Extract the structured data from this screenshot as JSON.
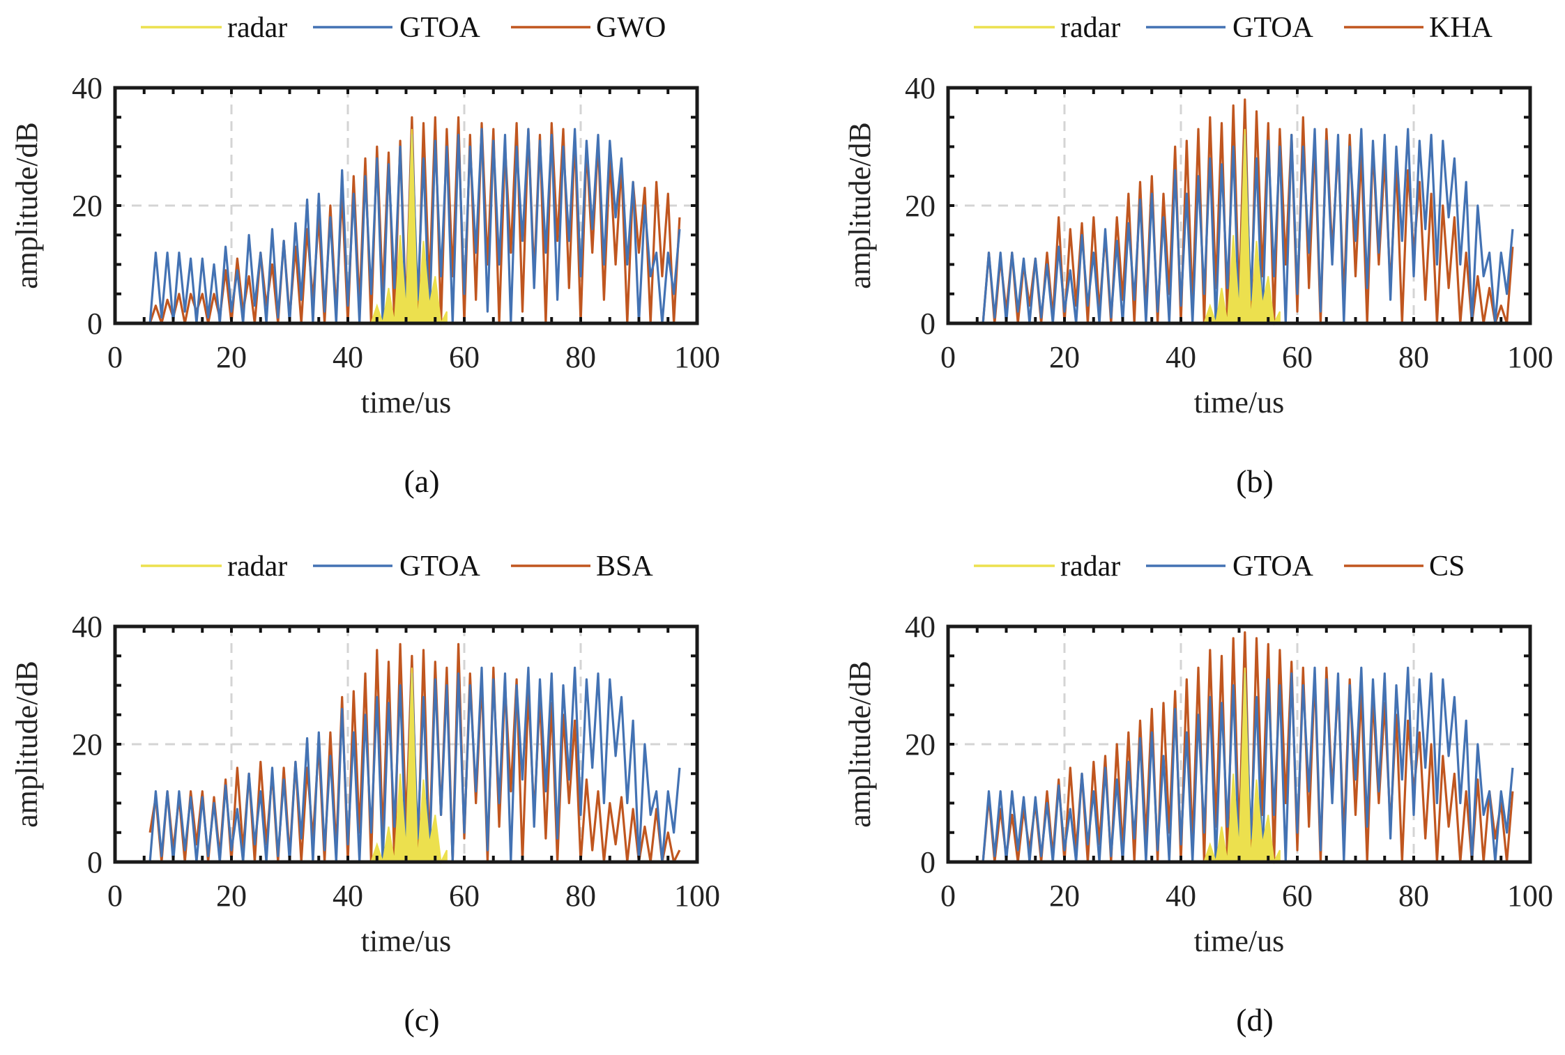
{
  "colors": {
    "radar": "#ece04e",
    "GTOA": "#4372b3",
    "other": "#c0561f"
  },
  "chart_data": [
    {
      "type": "line",
      "caption": "(a)",
      "xlabel": "time/us",
      "ylabel": "amplitude/dB",
      "xlim": [
        0,
        100
      ],
      "ylim": [
        0,
        40
      ],
      "xticks": [
        "0",
        "20",
        "40",
        "60",
        "80",
        "100"
      ],
      "yticks": [
        "0",
        "20",
        "40"
      ],
      "grid": true,
      "legend": "top",
      "series": [
        {
          "name": "radar",
          "x0": 44,
          "values": [
            0,
            3,
            0,
            6,
            0,
            15,
            2,
            33,
            0,
            14,
            3,
            8,
            0,
            2
          ]
        },
        {
          "name": "GTOA",
          "x0": 6,
          "values": [
            0,
            12,
            1,
            12,
            0,
            12,
            2,
            11,
            0,
            11,
            1,
            10,
            0,
            13,
            2,
            9,
            0,
            15,
            3,
            12,
            0,
            16,
            1,
            14,
            0,
            17,
            4,
            21,
            0,
            22,
            2,
            18,
            0,
            26,
            3,
            22,
            0,
            25,
            5,
            28,
            0,
            27,
            6,
            30,
            0,
            32,
            4,
            28,
            0,
            31,
            8,
            30,
            0,
            32,
            5,
            30,
            12,
            33,
            2,
            31,
            10,
            32,
            0,
            30,
            14,
            33,
            6,
            31,
            12,
            32,
            4,
            30,
            14,
            33,
            8,
            31,
            16,
            32,
            10,
            31,
            18,
            28,
            10,
            24,
            0,
            20,
            8,
            12,
            0,
            12,
            5,
            16
          ]
        },
        {
          "name": "GWO",
          "x0": 6,
          "values": [
            0,
            3,
            0,
            4,
            1,
            5,
            0,
            5,
            2,
            5,
            0,
            5,
            1,
            9,
            0,
            11,
            2,
            8,
            0,
            12,
            3,
            10,
            0,
            14,
            1,
            13,
            0,
            16,
            4,
            18,
            0,
            20,
            2,
            22,
            0,
            25,
            3,
            28,
            0,
            30,
            5,
            29,
            0,
            31,
            2,
            35,
            0,
            34,
            6,
            35,
            0,
            33,
            8,
            35,
            0,
            32,
            4,
            34,
            10,
            33,
            0,
            30,
            12,
            34,
            2,
            33,
            8,
            32,
            0,
            34,
            14,
            33,
            6,
            32,
            0,
            30,
            12,
            31,
            4,
            28,
            10,
            27,
            0,
            24,
            12,
            23,
            0,
            24,
            8,
            22,
            0,
            18
          ]
        }
      ]
    },
    {
      "type": "line",
      "caption": "(b)",
      "xlabel": "time/us",
      "ylabel": "amplitude/dB",
      "xlim": [
        0,
        100
      ],
      "ylim": [
        0,
        40
      ],
      "xticks": [
        "0",
        "20",
        "40",
        "60",
        "80",
        "100"
      ],
      "yticks": [
        "0",
        "20",
        "40"
      ],
      "grid": true,
      "legend": "top",
      "series": [
        {
          "name": "radar",
          "x0": 44,
          "values": [
            0,
            3,
            0,
            6,
            0,
            15,
            2,
            33,
            0,
            14,
            3,
            8,
            0,
            2
          ]
        },
        {
          "name": "GTOA",
          "x0": 6,
          "values": [
            0,
            12,
            1,
            12,
            0,
            12,
            2,
            11,
            0,
            11,
            1,
            10,
            0,
            13,
            2,
            9,
            0,
            15,
            3,
            12,
            0,
            16,
            1,
            14,
            0,
            17,
            4,
            21,
            0,
            22,
            2,
            18,
            0,
            26,
            3,
            22,
            0,
            25,
            5,
            28,
            0,
            27,
            6,
            30,
            0,
            32,
            4,
            28,
            0,
            31,
            8,
            30,
            0,
            32,
            5,
            30,
            12,
            33,
            2,
            31,
            10,
            32,
            0,
            30,
            14,
            33,
            6,
            31,
            12,
            32,
            4,
            30,
            14,
            33,
            8,
            31,
            16,
            32,
            10,
            31,
            18,
            28,
            10,
            24,
            0,
            20,
            8,
            12,
            0,
            12,
            5,
            16
          ]
        },
        {
          "name": "KHA",
          "x0": 6,
          "values": [
            0,
            12,
            0,
            11,
            2,
            12,
            0,
            10,
            3,
            11,
            0,
            12,
            1,
            18,
            0,
            16,
            3,
            17,
            0,
            18,
            2,
            15,
            0,
            18,
            4,
            22,
            0,
            24,
            2,
            25,
            0,
            22,
            5,
            30,
            0,
            31,
            3,
            33,
            0,
            35,
            6,
            34,
            0,
            37,
            4,
            38,
            0,
            36,
            8,
            34,
            0,
            33,
            10,
            32,
            2,
            35,
            6,
            31,
            0,
            33,
            12,
            30,
            4,
            32,
            8,
            29,
            0,
            30,
            10,
            28,
            6,
            27,
            0,
            26,
            12,
            24,
            4,
            22,
            0,
            20,
            6,
            18,
            0,
            12,
            0,
            8,
            0,
            6,
            0,
            3,
            0,
            13
          ]
        }
      ]
    },
    {
      "type": "line",
      "caption": "(c)",
      "xlabel": "time/us",
      "ylabel": "amplitude/dB",
      "xlim": [
        0,
        100
      ],
      "ylim": [
        0,
        40
      ],
      "xticks": [
        "0",
        "20",
        "40",
        "60",
        "80",
        "100"
      ],
      "yticks": [
        "0",
        "20",
        "40"
      ],
      "grid": true,
      "legend": "top",
      "series": [
        {
          "name": "radar",
          "x0": 44,
          "values": [
            0,
            3,
            0,
            6,
            0,
            15,
            2,
            33,
            0,
            14,
            3,
            8,
            0,
            2
          ]
        },
        {
          "name": "GTOA",
          "x0": 6,
          "values": [
            0,
            12,
            1,
            12,
            0,
            12,
            2,
            11,
            0,
            11,
            1,
            10,
            0,
            13,
            2,
            9,
            0,
            15,
            3,
            12,
            0,
            16,
            1,
            14,
            0,
            17,
            4,
            21,
            0,
            22,
            2,
            18,
            0,
            26,
            3,
            22,
            0,
            25,
            5,
            28,
            0,
            27,
            6,
            30,
            0,
            32,
            4,
            28,
            0,
            31,
            8,
            30,
            0,
            32,
            5,
            30,
            12,
            33,
            2,
            31,
            10,
            32,
            0,
            30,
            14,
            33,
            6,
            31,
            12,
            32,
            4,
            30,
            14,
            33,
            8,
            31,
            16,
            32,
            10,
            31,
            18,
            28,
            10,
            24,
            0,
            20,
            8,
            12,
            0,
            12,
            5,
            16
          ]
        },
        {
          "name": "BSA",
          "x0": 6,
          "values": [
            5,
            11,
            0,
            12,
            2,
            11,
            0,
            12,
            3,
            12,
            0,
            11,
            1,
            14,
            0,
            16,
            2,
            15,
            0,
            17,
            3,
            15,
            0,
            16,
            1,
            17,
            0,
            16,
            4,
            20,
            0,
            22,
            2,
            28,
            0,
            29,
            5,
            32,
            0,
            36,
            4,
            34,
            0,
            37,
            6,
            35,
            0,
            36,
            2,
            34,
            8,
            33,
            0,
            37,
            4,
            32,
            10,
            31,
            0,
            33,
            6,
            30,
            12,
            31,
            0,
            29,
            8,
            28,
            4,
            27,
            0,
            25,
            10,
            24,
            0,
            14,
            2,
            12,
            0,
            10,
            3,
            11,
            0,
            9,
            0,
            6,
            0,
            9,
            0,
            5,
            0,
            2
          ]
        }
      ]
    },
    {
      "type": "line",
      "caption": "(d)",
      "xlabel": "time/us",
      "ylabel": "amplitude/dB",
      "xlim": [
        0,
        100
      ],
      "ylim": [
        0,
        40
      ],
      "xticks": [
        "0",
        "20",
        "40",
        "60",
        "80",
        "100"
      ],
      "yticks": [
        "0",
        "20",
        "40"
      ],
      "grid": true,
      "legend": "top",
      "series": [
        {
          "name": "radar",
          "x0": 44,
          "values": [
            0,
            3,
            0,
            6,
            0,
            15,
            2,
            33,
            0,
            14,
            3,
            8,
            0,
            2
          ]
        },
        {
          "name": "GTOA",
          "x0": 6,
          "values": [
            0,
            12,
            1,
            12,
            0,
            12,
            2,
            11,
            0,
            11,
            1,
            10,
            0,
            13,
            2,
            9,
            0,
            15,
            3,
            12,
            0,
            16,
            1,
            14,
            0,
            17,
            4,
            21,
            0,
            22,
            2,
            18,
            0,
            26,
            3,
            22,
            0,
            25,
            5,
            28,
            0,
            27,
            6,
            30,
            0,
            32,
            4,
            28,
            0,
            31,
            8,
            30,
            0,
            32,
            5,
            30,
            12,
            33,
            2,
            31,
            10,
            32,
            0,
            30,
            14,
            33,
            6,
            31,
            12,
            32,
            4,
            30,
            14,
            33,
            8,
            31,
            16,
            32,
            10,
            31,
            18,
            28,
            10,
            24,
            0,
            20,
            8,
            12,
            0,
            12,
            5,
            16
          ]
        },
        {
          "name": "CS",
          "x0": 6,
          "values": [
            0,
            11,
            0,
            9,
            1,
            8,
            0,
            9,
            2,
            10,
            0,
            12,
            1,
            14,
            0,
            16,
            2,
            15,
            0,
            17,
            3,
            18,
            0,
            20,
            2,
            22,
            0,
            24,
            4,
            26,
            0,
            27,
            5,
            29,
            0,
            31,
            3,
            33,
            0,
            36,
            6,
            35,
            0,
            38,
            4,
            39,
            0,
            38,
            8,
            37,
            0,
            36,
            10,
            34,
            2,
            33,
            6,
            32,
            0,
            33,
            12,
            30,
            4,
            31,
            8,
            29,
            0,
            28,
            10,
            27,
            6,
            25,
            0,
            24,
            12,
            22,
            4,
            20,
            0,
            18,
            6,
            15,
            0,
            12,
            0,
            14,
            0,
            12,
            4,
            10,
            0,
            12
          ]
        }
      ]
    }
  ]
}
